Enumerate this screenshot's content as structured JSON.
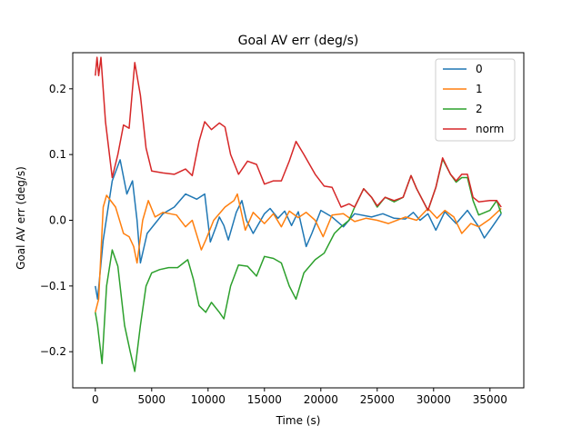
{
  "chart_data": {
    "type": "line",
    "title": "Goal AV err (deg/s)",
    "xlabel": "Time (s)",
    "ylabel": "Goal AV err (deg/s)",
    "xlim": [
      -2000,
      38000
    ],
    "ylim": [
      -0.255,
      0.255
    ],
    "xticks": [
      0,
      5000,
      10000,
      15000,
      20000,
      25000,
      30000,
      35000
    ],
    "yticks": [
      -0.2,
      -0.1,
      0.0,
      0.1,
      0.2
    ],
    "xtick_labels": [
      "0",
      "5000",
      "10000",
      "15000",
      "20000",
      "25000",
      "30000",
      "35000"
    ],
    "ytick_labels": [
      "−0.2",
      "−0.1",
      "0.0",
      "0.1",
      "0.2"
    ],
    "grid": false,
    "legend_position": "top-right",
    "series": [
      {
        "name": "0",
        "color": "#1f77b4",
        "points": [
          [
            0,
            -0.1
          ],
          [
            200,
            -0.12
          ],
          [
            700,
            -0.03
          ],
          [
            1500,
            0.06
          ],
          [
            2200,
            0.092
          ],
          [
            2800,
            0.04
          ],
          [
            3300,
            0.06
          ],
          [
            3700,
            0.0
          ],
          [
            4000,
            -0.065
          ],
          [
            4600,
            -0.02
          ],
          [
            5300,
            -0.005
          ],
          [
            6000,
            0.01
          ],
          [
            7000,
            0.02
          ],
          [
            8000,
            0.04
          ],
          [
            9000,
            0.032
          ],
          [
            9700,
            0.04
          ],
          [
            10200,
            -0.033
          ],
          [
            10700,
            -0.01
          ],
          [
            11000,
            0.005
          ],
          [
            11400,
            -0.008
          ],
          [
            11800,
            -0.03
          ],
          [
            12500,
            0.012
          ],
          [
            13000,
            0.03
          ],
          [
            13400,
            0.0
          ],
          [
            14000,
            -0.02
          ],
          [
            15000,
            0.01
          ],
          [
            15500,
            0.018
          ],
          [
            16200,
            0.003
          ],
          [
            16800,
            0.014
          ],
          [
            17400,
            -0.008
          ],
          [
            18000,
            0.013
          ],
          [
            18700,
            -0.04
          ],
          [
            19200,
            -0.02
          ],
          [
            20000,
            0.015
          ],
          [
            21000,
            0.005
          ],
          [
            22000,
            -0.01
          ],
          [
            23000,
            0.01
          ],
          [
            24500,
            0.005
          ],
          [
            25500,
            0.01
          ],
          [
            26500,
            0.003
          ],
          [
            27500,
            0.002
          ],
          [
            28200,
            0.012
          ],
          [
            28800,
            0.0
          ],
          [
            29500,
            0.01
          ],
          [
            30200,
            -0.015
          ],
          [
            31000,
            0.013
          ],
          [
            32000,
            -0.005
          ],
          [
            33000,
            0.015
          ],
          [
            34000,
            -0.01
          ],
          [
            34500,
            -0.027
          ],
          [
            35200,
            -0.01
          ],
          [
            36000,
            0.01
          ]
        ]
      },
      {
        "name": "1",
        "color": "#ff7f0e",
        "points": [
          [
            0,
            -0.14
          ],
          [
            300,
            -0.12
          ],
          [
            700,
            0.02
          ],
          [
            1000,
            0.038
          ],
          [
            1800,
            0.02
          ],
          [
            2500,
            -0.02
          ],
          [
            3000,
            -0.025
          ],
          [
            3400,
            -0.04
          ],
          [
            3700,
            -0.065
          ],
          [
            4200,
            0.0
          ],
          [
            4700,
            0.03
          ],
          [
            5300,
            0.005
          ],
          [
            6000,
            0.012
          ],
          [
            7200,
            0.008
          ],
          [
            8000,
            -0.01
          ],
          [
            8600,
            0.0
          ],
          [
            9400,
            -0.045
          ],
          [
            9800,
            -0.03
          ],
          [
            10500,
            0.0
          ],
          [
            11500,
            0.02
          ],
          [
            12300,
            0.03
          ],
          [
            12600,
            0.04
          ],
          [
            13300,
            -0.015
          ],
          [
            14000,
            0.012
          ],
          [
            15000,
            -0.005
          ],
          [
            15800,
            0.01
          ],
          [
            16500,
            -0.01
          ],
          [
            17200,
            0.014
          ],
          [
            18000,
            0.004
          ],
          [
            18700,
            0.012
          ],
          [
            19500,
            0.0
          ],
          [
            20200,
            -0.025
          ],
          [
            21000,
            0.008
          ],
          [
            22000,
            0.01
          ],
          [
            23000,
            -0.002
          ],
          [
            24000,
            0.003
          ],
          [
            25000,
            0.0
          ],
          [
            26000,
            -0.005
          ],
          [
            27500,
            0.005
          ],
          [
            28500,
            0.0
          ],
          [
            29500,
            0.018
          ],
          [
            30300,
            0.003
          ],
          [
            31000,
            0.015
          ],
          [
            31800,
            0.005
          ],
          [
            32500,
            -0.02
          ],
          [
            33300,
            -0.005
          ],
          [
            34000,
            -0.01
          ],
          [
            35000,
            0.002
          ],
          [
            36000,
            0.018
          ]
        ]
      },
      {
        "name": "2",
        "color": "#2ca02c",
        "points": [
          [
            0,
            -0.14
          ],
          [
            200,
            -0.16
          ],
          [
            600,
            -0.218
          ],
          [
            1000,
            -0.1
          ],
          [
            1500,
            -0.045
          ],
          [
            2000,
            -0.07
          ],
          [
            2600,
            -0.16
          ],
          [
            3100,
            -0.2
          ],
          [
            3500,
            -0.23
          ],
          [
            4000,
            -0.16
          ],
          [
            4500,
            -0.1
          ],
          [
            5000,
            -0.08
          ],
          [
            5700,
            -0.075
          ],
          [
            6500,
            -0.072
          ],
          [
            7300,
            -0.072
          ],
          [
            8200,
            -0.06
          ],
          [
            8700,
            -0.09
          ],
          [
            9200,
            -0.13
          ],
          [
            9800,
            -0.14
          ],
          [
            10300,
            -0.125
          ],
          [
            11000,
            -0.14
          ],
          [
            11400,
            -0.15
          ],
          [
            12000,
            -0.1
          ],
          [
            12700,
            -0.068
          ],
          [
            13500,
            -0.07
          ],
          [
            14300,
            -0.085
          ],
          [
            15000,
            -0.055
          ],
          [
            15800,
            -0.058
          ],
          [
            16500,
            -0.065
          ],
          [
            17200,
            -0.1
          ],
          [
            17800,
            -0.12
          ],
          [
            18500,
            -0.08
          ],
          [
            19500,
            -0.06
          ],
          [
            20300,
            -0.05
          ],
          [
            21200,
            -0.02
          ],
          [
            21800,
            -0.01
          ],
          [
            22500,
            0.0
          ],
          [
            23000,
            0.02
          ],
          [
            23800,
            0.048
          ],
          [
            24500,
            0.035
          ],
          [
            25000,
            0.02
          ],
          [
            25700,
            0.035
          ],
          [
            26500,
            0.028
          ],
          [
            27300,
            0.035
          ],
          [
            28000,
            0.068
          ],
          [
            28500,
            0.048
          ],
          [
            29500,
            0.015
          ],
          [
            30200,
            0.05
          ],
          [
            30800,
            0.093
          ],
          [
            31500,
            0.07
          ],
          [
            32000,
            0.058
          ],
          [
            32500,
            0.065
          ],
          [
            33000,
            0.065
          ],
          [
            33500,
            0.03
          ],
          [
            34000,
            0.008
          ],
          [
            35000,
            0.015
          ],
          [
            35600,
            0.03
          ],
          [
            36000,
            0.01
          ]
        ]
      },
      {
        "name": "norm",
        "color": "#d62728",
        "points": [
          [
            0,
            0.22
          ],
          [
            150,
            0.248
          ],
          [
            300,
            0.22
          ],
          [
            500,
            0.248
          ],
          [
            900,
            0.15
          ],
          [
            1500,
            0.065
          ],
          [
            2000,
            0.1
          ],
          [
            2500,
            0.145
          ],
          [
            3000,
            0.14
          ],
          [
            3500,
            0.24
          ],
          [
            4000,
            0.19
          ],
          [
            4500,
            0.11
          ],
          [
            5000,
            0.075
          ],
          [
            6000,
            0.072
          ],
          [
            7000,
            0.07
          ],
          [
            8000,
            0.078
          ],
          [
            8600,
            0.068
          ],
          [
            9200,
            0.12
          ],
          [
            9700,
            0.15
          ],
          [
            10300,
            0.138
          ],
          [
            11000,
            0.148
          ],
          [
            11500,
            0.142
          ],
          [
            12000,
            0.1
          ],
          [
            12700,
            0.07
          ],
          [
            13500,
            0.09
          ],
          [
            14300,
            0.085
          ],
          [
            15000,
            0.055
          ],
          [
            15800,
            0.06
          ],
          [
            16500,
            0.06
          ],
          [
            17200,
            0.09
          ],
          [
            17800,
            0.12
          ],
          [
            18500,
            0.1
          ],
          [
            19500,
            0.07
          ],
          [
            20300,
            0.052
          ],
          [
            21000,
            0.05
          ],
          [
            21800,
            0.02
          ],
          [
            22500,
            0.025
          ],
          [
            23000,
            0.02
          ],
          [
            23800,
            0.048
          ],
          [
            24500,
            0.035
          ],
          [
            25000,
            0.022
          ],
          [
            25700,
            0.035
          ],
          [
            26500,
            0.03
          ],
          [
            27300,
            0.035
          ],
          [
            28000,
            0.068
          ],
          [
            28500,
            0.048
          ],
          [
            29500,
            0.015
          ],
          [
            30200,
            0.05
          ],
          [
            30800,
            0.095
          ],
          [
            31500,
            0.07
          ],
          [
            32000,
            0.06
          ],
          [
            32500,
            0.07
          ],
          [
            33000,
            0.07
          ],
          [
            33500,
            0.035
          ],
          [
            34000,
            0.028
          ],
          [
            35000,
            0.03
          ],
          [
            35600,
            0.03
          ],
          [
            36000,
            0.02
          ]
        ]
      }
    ]
  }
}
